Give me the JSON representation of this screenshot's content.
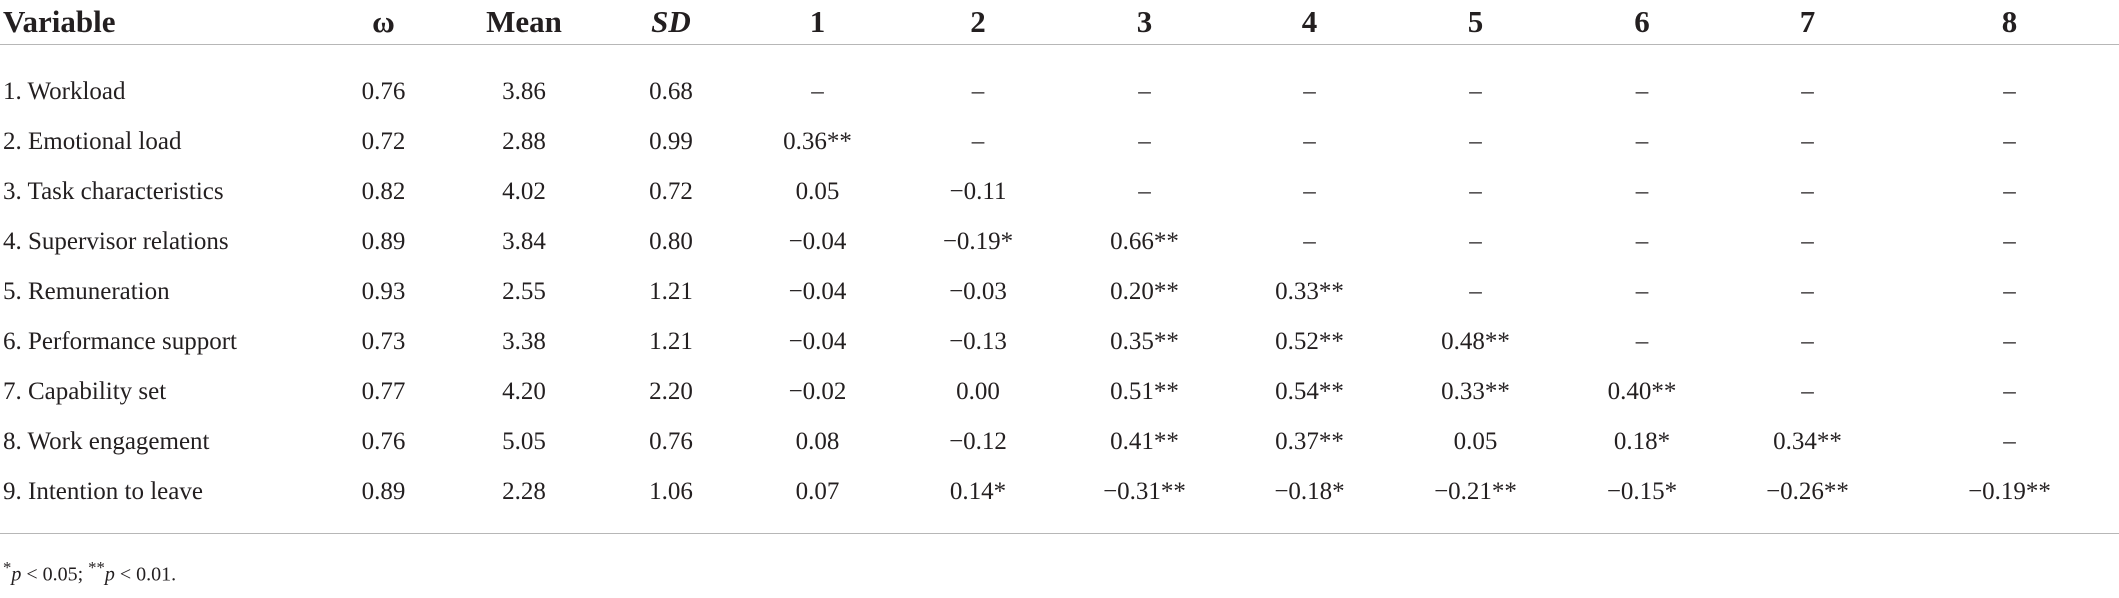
{
  "table": {
    "headers": [
      "Variable",
      "ω",
      "Mean",
      "SD",
      "1",
      "2",
      "3",
      "4",
      "5",
      "6",
      "7",
      "8"
    ],
    "rows": [
      [
        "1. Workload",
        "0.76",
        "3.86",
        "0.68",
        "–",
        "–",
        "–",
        "–",
        "–",
        "–",
        "–",
        "–"
      ],
      [
        "2. Emotional load",
        "0.72",
        "2.88",
        "0.99",
        "0.36**",
        "–",
        "–",
        "–",
        "–",
        "–",
        "–",
        "–"
      ],
      [
        "3. Task characteristics",
        "0.82",
        "4.02",
        "0.72",
        "0.05",
        "−0.11",
        "–",
        "–",
        "–",
        "–",
        "–",
        "–"
      ],
      [
        "4. Supervisor relations",
        "0.89",
        "3.84",
        "0.80",
        "−0.04",
        "−0.19*",
        "0.66**",
        "–",
        "–",
        "–",
        "–",
        "–"
      ],
      [
        "5. Remuneration",
        "0.93",
        "2.55",
        "1.21",
        "−0.04",
        "−0.03",
        "0.20**",
        "0.33**",
        "–",
        "–",
        "–",
        "–"
      ],
      [
        "6. Performance support",
        "0.73",
        "3.38",
        "1.21",
        "−0.04",
        "−0.13",
        "0.35**",
        "0.52**",
        "0.48**",
        "–",
        "–",
        "–"
      ],
      [
        "7. Capability set",
        "0.77",
        "4.20",
        "2.20",
        "−0.02",
        "0.00",
        "0.51**",
        "0.54**",
        "0.33**",
        "0.40**",
        "–",
        "–"
      ],
      [
        "8. Work engagement",
        "0.76",
        "5.05",
        "0.76",
        "0.08",
        "−0.12",
        "0.41**",
        "0.37**",
        "0.05",
        "0.18*",
        "0.34**",
        "–"
      ],
      [
        "9. Intention to leave",
        "0.89",
        "2.28",
        "1.06",
        "0.07",
        "0.14*",
        "−0.31**",
        "−0.18*",
        "−0.21**",
        "−0.15*",
        "−0.26**",
        "−0.19**"
      ]
    ]
  },
  "footnote": {
    "star1": "*",
    "p1": "p",
    "text1": " < 0.05; ",
    "star2": "**",
    "p2": "p",
    "text2": " < 0.01."
  }
}
